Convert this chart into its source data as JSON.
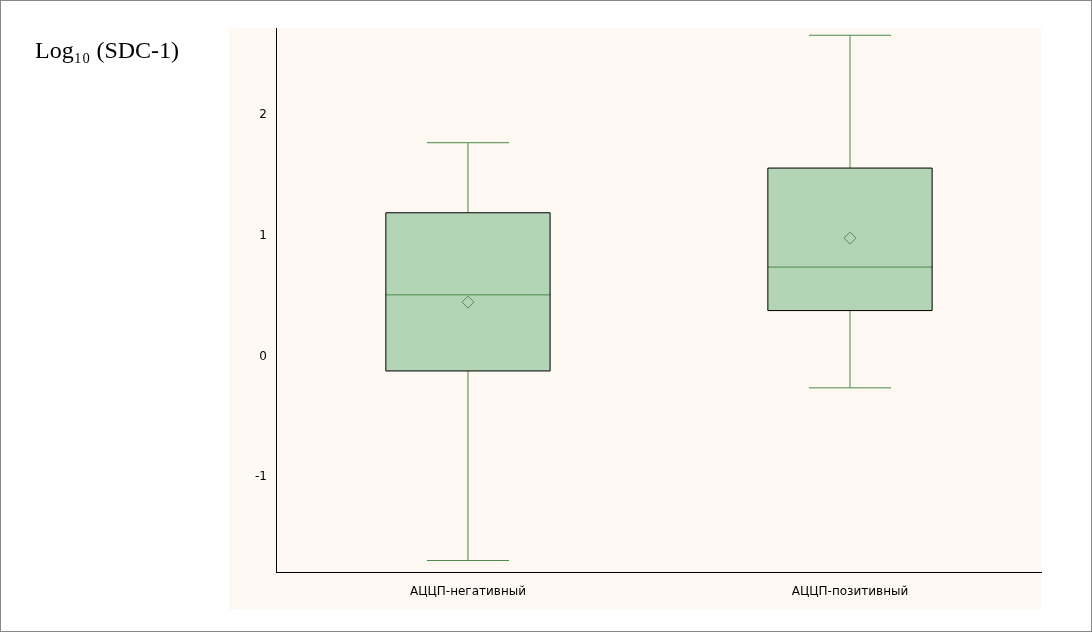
{
  "chart_data": {
    "type": "box",
    "ylabel": "Log₁₀ (SDC-1)",
    "categories": [
      "АЦЦП-негативный",
      "АЦЦП-позитивный"
    ],
    "color": "#b3d4b5",
    "ylim": [
      -1.79,
      2.72
    ],
    "yticks": [
      -1,
      0,
      1,
      2
    ],
    "marker": "diamond",
    "boxes": [
      {
        "low": -1.69,
        "q1": -0.12,
        "median": 0.51,
        "q3": 1.19,
        "high": 1.77,
        "mean": 0.45
      },
      {
        "low": -0.26,
        "q1": 0.38,
        "median": 0.74,
        "q3": 1.56,
        "high": 2.66,
        "mean": 0.98
      }
    ]
  }
}
